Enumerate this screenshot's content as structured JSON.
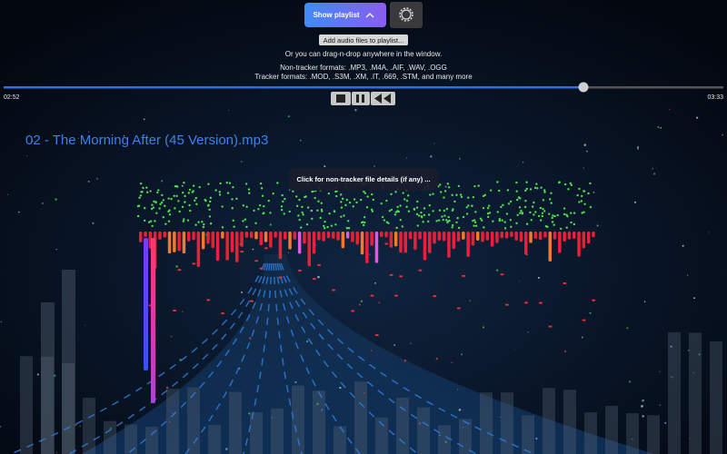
{
  "toolbar": {
    "playlist_button": "Show playlist"
  },
  "instructions": {
    "add_button": "Add audio files to playlist...",
    "drag_hint": "Or you can drag-n-drop anywhere in the window.",
    "non_tracker": "Non-tracker formats: .MP3, .M4A, .AIF, .WAV, .OGG",
    "tracker": "Tracker formats: .MOD, .S3M, .XM, .IT, .669, .STM, and many more"
  },
  "player": {
    "elapsed": "02:52",
    "duration": "03:33"
  },
  "now_playing": {
    "title": "02 - The Morning After (45 Version).mp3"
  },
  "details_button": "Click for non-tracker file details (if any) ..."
}
